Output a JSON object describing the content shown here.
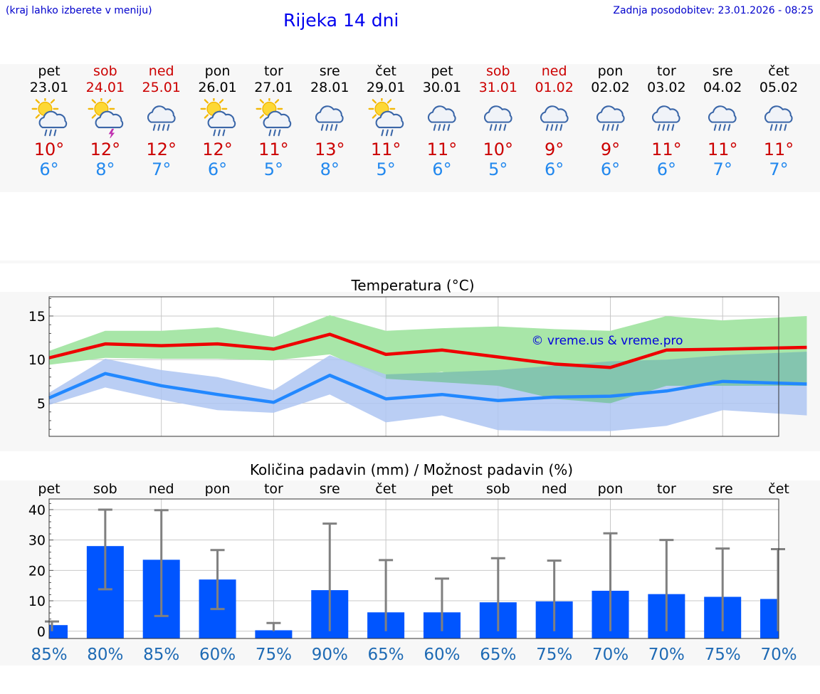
{
  "header": {
    "menu_hint": "(kraj lahko izberete v meniju)",
    "title": "Rijeka 14 dni",
    "last_update": "Zadnja posodobitev: 23.01.2026 - 08:25"
  },
  "days": [
    {
      "name": "pet",
      "date": "23.01",
      "weekend": false,
      "icon": "sun-cloud-rain-icon",
      "max": "10°",
      "min": "6°"
    },
    {
      "name": "sob",
      "date": "24.01",
      "weekend": true,
      "icon": "sun-cloud-thunder-icon",
      "max": "12°",
      "min": "8°"
    },
    {
      "name": "ned",
      "date": "25.01",
      "weekend": true,
      "icon": "cloud-rain-icon",
      "max": "12°",
      "min": "7°"
    },
    {
      "name": "pon",
      "date": "26.01",
      "weekend": false,
      "icon": "sun-cloud-rain-icon",
      "max": "12°",
      "min": "6°"
    },
    {
      "name": "tor",
      "date": "27.01",
      "weekend": false,
      "icon": "sun-cloud-rain-icon",
      "max": "11°",
      "min": "5°"
    },
    {
      "name": "sre",
      "date": "28.01",
      "weekend": false,
      "icon": "cloud-rain-icon",
      "max": "13°",
      "min": "8°"
    },
    {
      "name": "čet",
      "date": "29.01",
      "weekend": false,
      "icon": "sun-cloud-rain-icon",
      "max": "11°",
      "min": "5°"
    },
    {
      "name": "pet",
      "date": "30.01",
      "weekend": false,
      "icon": "cloud-rain-icon",
      "max": "11°",
      "min": "6°"
    },
    {
      "name": "sob",
      "date": "31.01",
      "weekend": true,
      "icon": "cloud-rain-icon",
      "max": "10°",
      "min": "5°"
    },
    {
      "name": "ned",
      "date": "01.02",
      "weekend": true,
      "icon": "cloud-rain-icon",
      "max": "9°",
      "min": "6°"
    },
    {
      "name": "pon",
      "date": "02.02",
      "weekend": false,
      "icon": "cloud-rain-icon",
      "max": "9°",
      "min": "6°"
    },
    {
      "name": "tor",
      "date": "03.02",
      "weekend": false,
      "icon": "cloud-rain-icon",
      "max": "11°",
      "min": "6°"
    },
    {
      "name": "sre",
      "date": "04.02",
      "weekend": false,
      "icon": "cloud-rain-icon",
      "max": "11°",
      "min": "7°"
    },
    {
      "name": "čet",
      "date": "05.02",
      "weekend": false,
      "icon": "cloud-rain-icon",
      "max": "11°",
      "min": "7°"
    }
  ],
  "chart_data": [
    {
      "type": "line",
      "title": "Temperatura (°C)",
      "watermark": "© vreme.us & vreme.pro",
      "ylim": [
        1.2,
        17.2
      ],
      "yticks": [
        5,
        10,
        15
      ],
      "ytick_labels": [
        "5",
        "10",
        "15"
      ],
      "x_days": 13.5,
      "grid": true,
      "colors": {
        "max": "#ee0000",
        "min": "#2288ff",
        "max_band": "#a8e6a8",
        "min_band": "#aec6f2",
        "overlap": "#7fc4a8"
      },
      "series": [
        {
          "name": "max",
          "x": [
            0,
            1,
            2,
            3,
            4,
            5,
            6,
            7,
            8,
            9,
            10,
            11,
            12,
            13.5
          ],
          "values": [
            10.2,
            11.8,
            11.6,
            11.8,
            11.2,
            12.9,
            10.6,
            11.1,
            10.3,
            9.5,
            9.1,
            11.1,
            11.2,
            11.4
          ],
          "band_upper": [
            11.0,
            13.3,
            13.3,
            13.7,
            12.6,
            15.1,
            13.3,
            13.6,
            13.8,
            13.5,
            13.3,
            15.0,
            14.5,
            15.0
          ],
          "band_lower": [
            9.4,
            10.2,
            10.1,
            10.1,
            9.9,
            10.6,
            7.8,
            8.6,
            7.0,
            5.5,
            5.0,
            7.0,
            7.0,
            7.0
          ]
        },
        {
          "name": "min",
          "x": [
            0,
            1,
            2,
            3,
            4,
            5,
            6,
            7,
            8,
            9,
            10,
            11,
            12,
            13.5
          ],
          "values": [
            5.6,
            8.4,
            7.0,
            6.0,
            5.1,
            8.2,
            5.5,
            6.0,
            5.3,
            5.7,
            5.8,
            6.4,
            7.5,
            7.2
          ],
          "band_upper": [
            6.2,
            10.1,
            8.8,
            8.0,
            6.5,
            10.5,
            8.3,
            8.5,
            8.8,
            9.3,
            9.8,
            10.0,
            10.5,
            10.9
          ],
          "band_lower": [
            4.8,
            6.8,
            5.4,
            4.2,
            3.9,
            6.0,
            2.8,
            3.6,
            1.9,
            1.8,
            1.8,
            2.4,
            4.2,
            3.6
          ]
        }
      ]
    },
    {
      "type": "bar",
      "title": "Količina padavin (mm) / Možnost padavin (%)",
      "categories": [
        "pet",
        "sob",
        "ned",
        "pon",
        "tor",
        "sre",
        "čet",
        "pet",
        "sob",
        "ned",
        "pon",
        "tor",
        "sre",
        "čet"
      ],
      "ylim": [
        -2.4,
        43.5
      ],
      "yticks": [
        0,
        10,
        20,
        30,
        40
      ],
      "ytick_labels": [
        "0",
        "10",
        "20",
        "30",
        "40"
      ],
      "grid": true,
      "values": [
        2.0,
        28.0,
        23.5,
        17.0,
        0.3,
        13.5,
        6.2,
        6.2,
        9.5,
        9.8,
        13.3,
        12.2,
        11.3,
        10.6
      ],
      "error_low": [
        0.0,
        13.8,
        5.0,
        7.3,
        0.0,
        0.0,
        0.0,
        0.0,
        0.0,
        0.0,
        0.0,
        0.0,
        0.0,
        0.0
      ],
      "error_high": [
        3.2,
        40.0,
        39.8,
        26.7,
        2.7,
        35.4,
        23.4,
        17.3,
        24.0,
        23.2,
        32.2,
        30.0,
        27.2,
        27.0
      ],
      "probability_labels": [
        "85%",
        "80%",
        "85%",
        "60%",
        "75%",
        "90%",
        "65%",
        "60%",
        "65%",
        "75%",
        "70%",
        "70%",
        "75%",
        "70%"
      ],
      "colors": {
        "bar": "#0055ff",
        "error": "#808080",
        "prob": "#1e6ab4"
      }
    }
  ]
}
